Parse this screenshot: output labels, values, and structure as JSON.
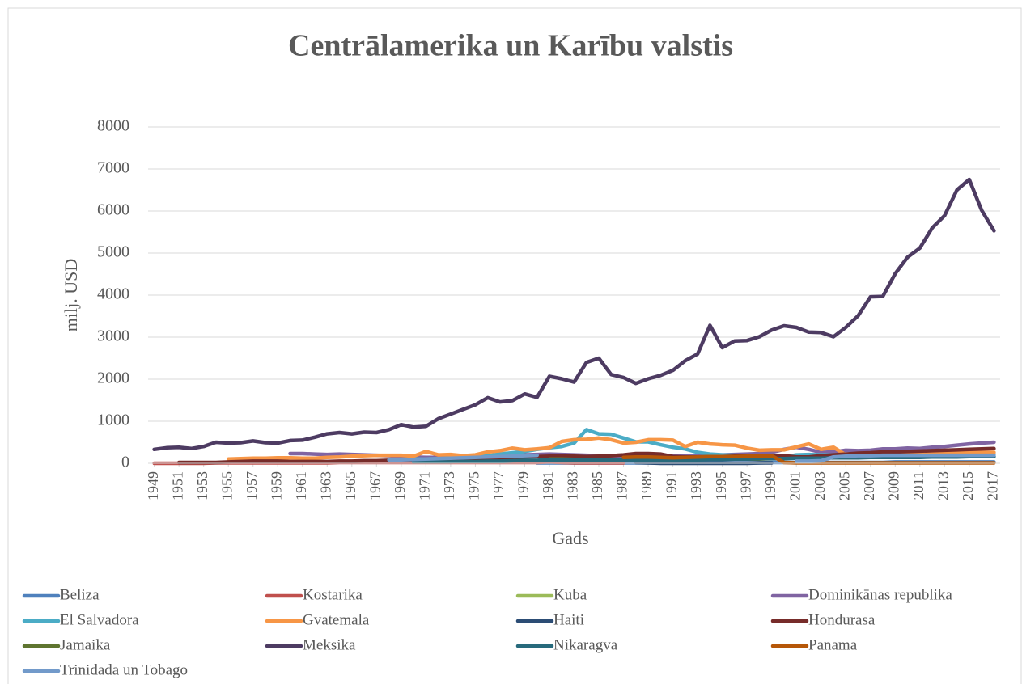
{
  "chart_data": {
    "type": "line",
    "title": "Centrālamerika un Karību valstis",
    "xlabel": "Gads",
    "ylabel": "milj. USD",
    "x": [
      1949,
      1950,
      1951,
      1952,
      1953,
      1954,
      1955,
      1956,
      1957,
      1958,
      1959,
      1960,
      1961,
      1962,
      1963,
      1964,
      1965,
      1966,
      1967,
      1968,
      1969,
      1970,
      1971,
      1972,
      1973,
      1974,
      1975,
      1976,
      1977,
      1978,
      1979,
      1980,
      1981,
      1982,
      1983,
      1984,
      1985,
      1986,
      1987,
      1988,
      1989,
      1990,
      1991,
      1992,
      1993,
      1994,
      1995,
      1996,
      1997,
      1998,
      1999,
      2000,
      2001,
      2002,
      2003,
      2004,
      2005,
      2006,
      2007,
      2008,
      2009,
      2010,
      2011,
      2012,
      2013,
      2014,
      2015,
      2016,
      2017
    ],
    "xlim": [
      1948.5,
      2017.5
    ],
    "xticks": [
      1949,
      1951,
      1953,
      1955,
      1957,
      1959,
      1961,
      1963,
      1965,
      1967,
      1969,
      1971,
      1973,
      1975,
      1977,
      1979,
      1981,
      1983,
      1985,
      1987,
      1989,
      1991,
      1993,
      1995,
      1997,
      1999,
      2001,
      2003,
      2005,
      2007,
      2009,
      2011,
      2013,
      2015,
      2017
    ],
    "ylim": [
      0,
      8000
    ],
    "yticks": [
      0,
      1000,
      2000,
      3000,
      4000,
      5000,
      6000,
      7000,
      8000
    ],
    "grid": true,
    "legend": "bottom",
    "series": [
      {
        "name": "Beliza",
        "color": "#4f81bd",
        "values": [
          null,
          null,
          null,
          null,
          null,
          null,
          null,
          null,
          null,
          null,
          null,
          null,
          null,
          null,
          null,
          null,
          null,
          null,
          null,
          null,
          null,
          null,
          null,
          null,
          null,
          null,
          null,
          null,
          null,
          null,
          null,
          10,
          10,
          10,
          10,
          10,
          10,
          10,
          10,
          10,
          10,
          10,
          10,
          10,
          10,
          10,
          10,
          10,
          10,
          10,
          20,
          20,
          20,
          20,
          20,
          20,
          20,
          20,
          20,
          20,
          30,
          30,
          30,
          30,
          30,
          30,
          30,
          30,
          30
        ]
      },
      {
        "name": "Kostarika",
        "color": "#c0504d",
        "values": [
          0,
          0,
          0,
          0,
          0,
          10,
          10,
          10,
          10,
          10,
          10,
          10,
          10,
          10,
          10,
          20,
          20,
          20,
          20,
          20,
          20,
          20,
          20,
          20,
          20,
          20,
          20,
          20,
          20,
          20,
          20,
          20,
          30,
          20,
          10,
          10,
          10,
          10,
          10,
          null,
          null,
          null,
          null,
          null,
          null,
          null,
          null,
          null,
          null,
          null,
          null,
          null,
          null,
          null,
          null,
          null,
          null,
          null,
          null,
          null,
          null,
          null,
          null,
          null,
          null,
          null,
          null,
          null,
          null
        ]
      },
      {
        "name": "Kuba",
        "color": "#9bbb59",
        "values": [
          null,
          null,
          null,
          null,
          null,
          null,
          null,
          null,
          null,
          null,
          null,
          null,
          null,
          null,
          null,
          null,
          null,
          null,
          null,
          null,
          null,
          null,
          null,
          null,
          null,
          null,
          null,
          null,
          null,
          null,
          null,
          null,
          null,
          100,
          90,
          80,
          70,
          70,
          80,
          70,
          60,
          50,
          null,
          null,
          null,
          null,
          null,
          null,
          null,
          null,
          null,
          null,
          null,
          null,
          null,
          null,
          null,
          null,
          null,
          null,
          null,
          null,
          null,
          null,
          null,
          null,
          null,
          null,
          null
        ]
      },
      {
        "name": "Dominikānas republika",
        "color": "#8064a2",
        "values": [
          null,
          null,
          null,
          null,
          null,
          null,
          null,
          null,
          null,
          null,
          null,
          230,
          230,
          220,
          210,
          220,
          210,
          200,
          190,
          180,
          170,
          150,
          140,
          140,
          130,
          130,
          130,
          140,
          150,
          160,
          200,
          210,
          220,
          210,
          200,
          190,
          180,
          170,
          170,
          170,
          160,
          160,
          170,
          180,
          180,
          190,
          200,
          210,
          220,
          230,
          260,
          330,
          380,
          330,
          260,
          270,
          310,
          300,
          310,
          340,
          340,
          360,
          350,
          380,
          400,
          430,
          460,
          480,
          500
        ]
      },
      {
        "name": "El Salvadora",
        "color": "#4bacc6",
        "values": [
          null,
          null,
          null,
          null,
          null,
          null,
          null,
          null,
          null,
          null,
          null,
          null,
          null,
          null,
          null,
          null,
          null,
          null,
          null,
          80,
          90,
          100,
          100,
          110,
          120,
          120,
          150,
          180,
          220,
          250,
          280,
          330,
          370,
          400,
          480,
          800,
          700,
          690,
          600,
          510,
          510,
          440,
          380,
          340,
          260,
          220,
          200,
          190,
          180,
          170,
          160,
          150,
          200,
          210,
          200,
          200,
          200,
          200,
          210,
          210,
          200,
          200,
          200,
          210,
          210,
          210,
          210,
          220,
          220
        ]
      },
      {
        "name": "Gvatemala",
        "color": "#f79646",
        "values": [
          null,
          null,
          null,
          null,
          null,
          null,
          100,
          110,
          120,
          120,
          130,
          130,
          120,
          120,
          140,
          150,
          170,
          180,
          190,
          190,
          190,
          170,
          280,
          200,
          210,
          180,
          200,
          270,
          300,
          360,
          320,
          340,
          370,
          520,
          560,
          570,
          600,
          560,
          480,
          500,
          560,
          560,
          550,
          400,
          500,
          460,
          440,
          430,
          360,
          310,
          320,
          320,
          390,
          460,
          330,
          380,
          200,
          230,
          240,
          240,
          230,
          240,
          250,
          240,
          250,
          250,
          260,
          260,
          260
        ]
      },
      {
        "name": "Haiti",
        "color": "#2c4d75",
        "values": [
          null,
          null,
          null,
          null,
          null,
          null,
          null,
          null,
          null,
          null,
          null,
          null,
          null,
          null,
          null,
          null,
          null,
          null,
          null,
          null,
          null,
          null,
          null,
          null,
          null,
          null,
          null,
          null,
          null,
          null,
          null,
          null,
          null,
          null,
          null,
          null,
          null,
          null,
          null,
          20,
          10,
          0,
          0,
          0,
          0,
          0,
          0,
          0,
          0,
          10,
          10,
          null,
          null,
          null,
          null,
          null,
          null,
          null,
          null,
          null,
          null,
          null,
          null,
          null,
          null,
          null,
          null,
          null,
          null
        ]
      },
      {
        "name": "Hondurasa",
        "color": "#772c2a",
        "values": [
          null,
          null,
          20,
          20,
          20,
          20,
          30,
          40,
          50,
          50,
          50,
          40,
          40,
          40,
          40,
          50,
          50,
          60,
          60,
          70,
          70,
          70,
          80,
          80,
          90,
          110,
          120,
          130,
          130,
          140,
          150,
          160,
          170,
          180,
          170,
          160,
          170,
          180,
          200,
          230,
          230,
          220,
          160,
          150,
          150,
          160,
          160,
          170,
          170,
          180,
          180,
          180,
          150,
          150,
          180,
          200,
          220,
          240,
          250,
          270,
          270,
          280,
          290,
          300,
          310,
          320,
          330,
          340,
          350
        ]
      },
      {
        "name": "Jamaika",
        "color": "#5f7530",
        "values": [
          null,
          null,
          null,
          null,
          null,
          null,
          null,
          null,
          null,
          null,
          null,
          null,
          null,
          null,
          null,
          null,
          null,
          null,
          null,
          null,
          null,
          null,
          null,
          null,
          null,
          null,
          null,
          null,
          null,
          null,
          null,
          null,
          100,
          100,
          90,
          90,
          90,
          90,
          90,
          100,
          100,
          100,
          100,
          100,
          100,
          100,
          100,
          100,
          100,
          100,
          110,
          null,
          null,
          null,
          null,
          null,
          null,
          null,
          null,
          null,
          null,
          null,
          null,
          null,
          null,
          null,
          null,
          null,
          null
        ]
      },
      {
        "name": "Meksika",
        "color": "#4d3b62",
        "values": [
          330,
          370,
          380,
          350,
          400,
          500,
          480,
          490,
          530,
          490,
          480,
          540,
          550,
          620,
          700,
          730,
          700,
          740,
          730,
          800,
          920,
          860,
          880,
          1060,
          1170,
          1280,
          1390,
          1560,
          1460,
          1490,
          1650,
          1570,
          2070,
          2010,
          1930,
          2400,
          2500,
          2110,
          2040,
          1900,
          2010,
          2090,
          2210,
          2440,
          2600,
          3280,
          2750,
          2910,
          2920,
          3010,
          3170,
          3270,
          3230,
          3120,
          3110,
          3010,
          3230,
          3510,
          3960,
          3970,
          4510,
          4900,
          5120,
          5600,
          5890,
          6500,
          6750,
          6020,
          5530
        ]
      },
      {
        "name": "Nikaragva",
        "color": "#276a7c",
        "values": [
          null,
          null,
          null,
          null,
          null,
          null,
          null,
          null,
          null,
          null,
          null,
          null,
          null,
          null,
          null,
          null,
          null,
          null,
          null,
          null,
          null,
          30,
          30,
          30,
          30,
          40,
          40,
          50,
          50,
          60,
          70,
          70,
          80,
          80,
          80,
          80,
          80,
          80,
          70,
          70,
          70,
          70,
          70,
          80,
          80,
          90,
          90,
          100,
          100,
          110,
          110,
          110,
          120,
          120,
          120,
          130,
          130,
          130,
          140,
          140,
          140,
          140,
          140,
          150,
          150,
          150,
          160,
          160,
          160
        ]
      },
      {
        "name": "Panama",
        "color": "#b65708",
        "values": [
          null,
          null,
          null,
          null,
          null,
          null,
          null,
          null,
          null,
          null,
          null,
          null,
          null,
          null,
          null,
          null,
          null,
          null,
          null,
          null,
          null,
          null,
          null,
          null,
          null,
          null,
          null,
          null,
          null,
          null,
          null,
          null,
          null,
          null,
          null,
          null,
          null,
          null,
          140,
          150,
          150,
          140,
          130,
          140,
          150,
          160,
          160,
          160,
          170,
          170,
          180,
          20,
          10,
          10,
          10,
          10,
          10,
          10,
          10,
          10,
          10,
          10,
          10,
          10,
          10,
          10,
          10,
          10,
          10
        ]
      },
      {
        "name": "Trinidada un Tobago",
        "color": "#729aca",
        "values": [
          null,
          null,
          null,
          null,
          null,
          null,
          null,
          null,
          null,
          null,
          null,
          null,
          null,
          null,
          null,
          null,
          null,
          null,
          null,
          80,
          80,
          90,
          100,
          110,
          120,
          130,
          140,
          150,
          160,
          170,
          180,
          190,
          null,
          null,
          null,
          null,
          null,
          null,
          null,
          null,
          null,
          null,
          null,
          null,
          null,
          80,
          null,
          null,
          null,
          null,
          null,
          null,
          50,
          50,
          60,
          150,
          170,
          180,
          180,
          190,
          190,
          190,
          190,
          190,
          190,
          190,
          190,
          190,
          190
        ]
      }
    ]
  }
}
